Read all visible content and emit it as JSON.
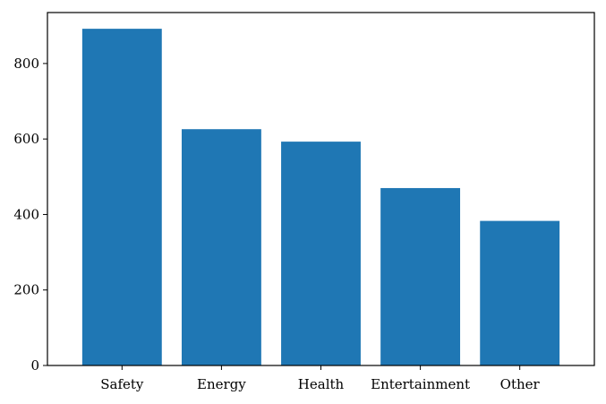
{
  "chart_data": {
    "type": "bar",
    "title": "",
    "xlabel": "",
    "ylabel": "",
    "categories": [
      "Safety",
      "Energy",
      "Health",
      "Entertainment",
      "Other"
    ],
    "values": [
      892,
      626,
      593,
      470,
      383
    ],
    "ylim": [
      0,
      935
    ],
    "yticks": [
      0,
      200,
      400,
      600,
      800
    ],
    "ytick_labels": [
      "0",
      "200",
      "400",
      "600",
      "800"
    ],
    "bar_color": "#1f77b4",
    "grid": false,
    "legend": "none"
  }
}
